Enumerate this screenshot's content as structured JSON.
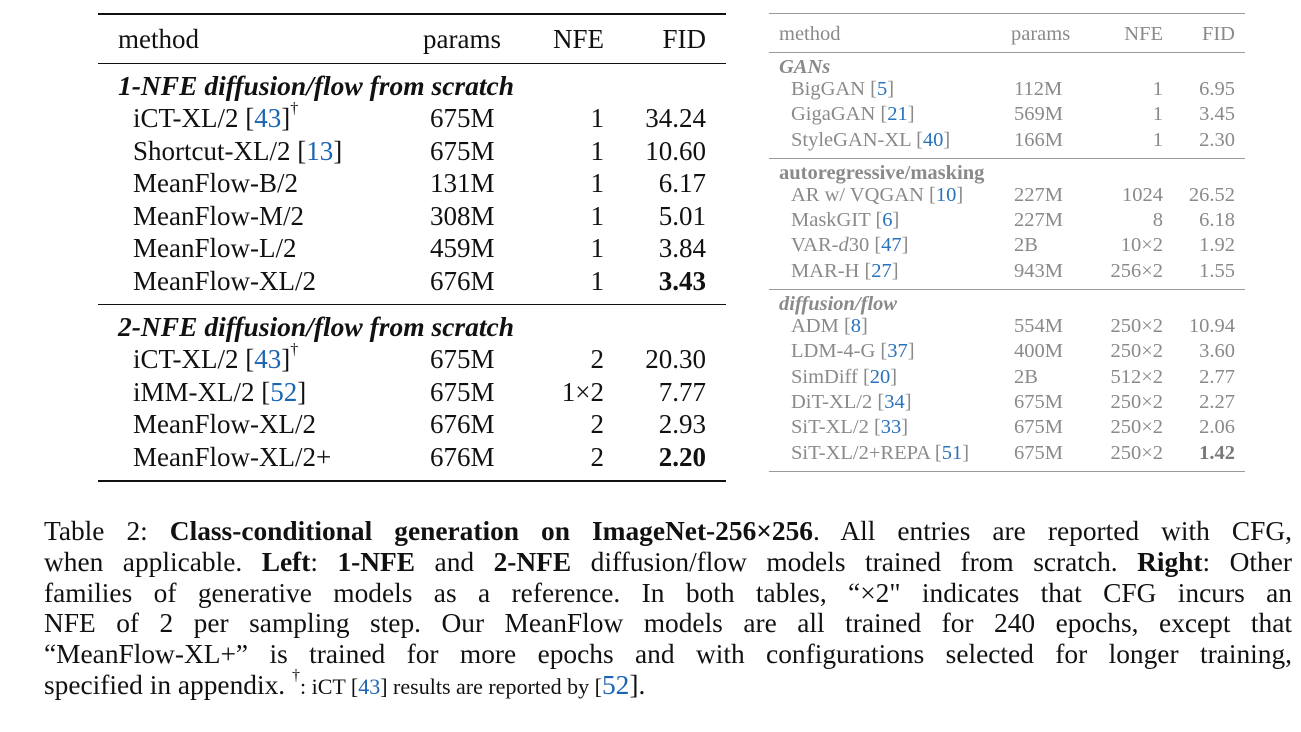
{
  "left_table": {
    "headers": {
      "method": "method",
      "params": "params",
      "nfe": "NFE",
      "fid": "FID"
    },
    "sections": [
      {
        "title": "1-NFE diffusion/flow from scratch",
        "rows": [
          {
            "method": "iCT-XL/2 [",
            "cite": "43",
            "close": "]",
            "sup": "†",
            "params": "675M",
            "nfe": "1",
            "fid": "34.24",
            "bold": false
          },
          {
            "method": "Shortcut-XL/2 [",
            "cite": "13",
            "close": "]",
            "sup": "",
            "params": "675M",
            "nfe": "1",
            "fid": "10.60",
            "bold": false
          },
          {
            "method": "MeanFlow-B/2",
            "cite": "",
            "close": "",
            "sup": "",
            "params": "131M",
            "nfe": "1",
            "fid": "6.17",
            "bold": false
          },
          {
            "method": "MeanFlow-M/2",
            "cite": "",
            "close": "",
            "sup": "",
            "params": "308M",
            "nfe": "1",
            "fid": "5.01",
            "bold": false
          },
          {
            "method": "MeanFlow-L/2",
            "cite": "",
            "close": "",
            "sup": "",
            "params": "459M",
            "nfe": "1",
            "fid": "3.84",
            "bold": false
          },
          {
            "method": "MeanFlow-XL/2",
            "cite": "",
            "close": "",
            "sup": "",
            "params": "676M",
            "nfe": "1",
            "fid": "3.43",
            "bold": true
          }
        ]
      },
      {
        "title": "2-NFE diffusion/flow from scratch",
        "rows": [
          {
            "method": "iCT-XL/2 [",
            "cite": "43",
            "close": "]",
            "sup": "†",
            "params": "675M",
            "nfe": "2",
            "fid": "20.30",
            "bold": false
          },
          {
            "method": "iMM-XL/2 [",
            "cite": "52",
            "close": "]",
            "sup": "",
            "params": "675M",
            "nfe": "1×2",
            "fid": "7.77",
            "bold": false
          },
          {
            "method": "MeanFlow-XL/2",
            "cite": "",
            "close": "",
            "sup": "",
            "params": "676M",
            "nfe": "2",
            "fid": "2.93",
            "bold": false
          },
          {
            "method": "MeanFlow-XL/2+",
            "cite": "",
            "close": "",
            "sup": "",
            "params": "676M",
            "nfe": "2",
            "fid": "2.20",
            "bold": true
          }
        ]
      }
    ]
  },
  "right_table": {
    "headers": {
      "method": "method",
      "params": "params",
      "nfe": "NFE",
      "fid": "FID"
    },
    "sections": [
      {
        "title": "GANs",
        "italic": true,
        "rows": [
          {
            "pre": "BigGAN [",
            "cite": "5",
            "post": "]",
            "params": "112M",
            "nfe": "1",
            "fid": "6.95",
            "bold": false
          },
          {
            "pre": "GigaGAN [",
            "cite": "21",
            "post": "]",
            "params": "569M",
            "nfe": "1",
            "fid": "3.45",
            "bold": false
          },
          {
            "pre": "StyleGAN-XL [",
            "cite": "40",
            "post": "]",
            "params": "166M",
            "nfe": "1",
            "fid": "2.30",
            "bold": false
          }
        ]
      },
      {
        "title": "autoregressive/masking",
        "italic": false,
        "rows": [
          {
            "pre": "AR w/ VQGAN [",
            "cite": "10",
            "post": "]",
            "params": "227M",
            "nfe": "1024",
            "fid": "26.52",
            "bold": false
          },
          {
            "pre": "MaskGIT [",
            "cite": "6",
            "post": "]",
            "params": "227M",
            "nfe": "8",
            "fid": "6.18",
            "bold": false
          },
          {
            "pre": "VAR-",
            "it": "d",
            "pre2": "30 [",
            "cite": "47",
            "post": "]",
            "params": "2B",
            "nfe": "10×2",
            "fid": "1.92",
            "bold": false
          },
          {
            "pre": "MAR-H [",
            "cite": "27",
            "post": "]",
            "params": "943M",
            "nfe": "256×2",
            "fid": "1.55",
            "bold": false
          }
        ]
      },
      {
        "title": "diffusion/flow",
        "italic": true,
        "rows": [
          {
            "pre": "ADM [",
            "cite": "8",
            "post": "]",
            "params": "554M",
            "nfe": "250×2",
            "fid": "10.94",
            "bold": false
          },
          {
            "pre": "LDM-4-G [",
            "cite": "37",
            "post": "]",
            "params": "400M",
            "nfe": "250×2",
            "fid": "3.60",
            "bold": false
          },
          {
            "pre": "SimDiff [",
            "cite": "20",
            "post": "]",
            "params": "2B",
            "nfe": "512×2",
            "fid": "2.77",
            "bold": false
          },
          {
            "pre": "DiT-XL/2 [",
            "cite": "34",
            "post": "]",
            "params": "675M",
            "nfe": "250×2",
            "fid": "2.27",
            "bold": false
          },
          {
            "pre": "SiT-XL/2 [",
            "cite": "33",
            "post": "]",
            "params": "675M",
            "nfe": "250×2",
            "fid": "2.06",
            "bold": false
          },
          {
            "pre": "SiT-XL/2+REPA [",
            "cite": "51",
            "post": "]",
            "params": "675M",
            "nfe": "250×2",
            "fid": "1.42",
            "bold": true
          }
        ]
      }
    ]
  },
  "caption": {
    "label": "Table 2: ",
    "title": "Class-conditional generation on ImageNet-256×256",
    "line1_rest": ". All entries are reported with CFG,",
    "line2_a": "when applicable. ",
    "line2_left": "Left",
    "line2_b": ": ",
    "line2_1nfe": "1-NFE",
    "line2_c": " and ",
    "line2_2nfe": "2-NFE",
    "line2_d": " diffusion/flow models trained from scratch. ",
    "line2_right": "Right",
    "line2_e": ": Other",
    "line3": "families of generative models as a reference. In both tables, “×2\" indicates that CFG incurs an",
    "line4": "NFE of 2 per sampling step. Our MeanFlow models are all trained for 240 epochs, except that",
    "line5": "“MeanFlow-XL+” is trained for more epochs and with configurations selected for longer training,",
    "line6_a": "specified in appendix. ",
    "line6_dagger": "†",
    "line6_b": ": iCT [",
    "line6_cite1": "43",
    "line6_c": "] results are reported by [",
    "line6_cite2": "52",
    "line6_d": "]."
  }
}
